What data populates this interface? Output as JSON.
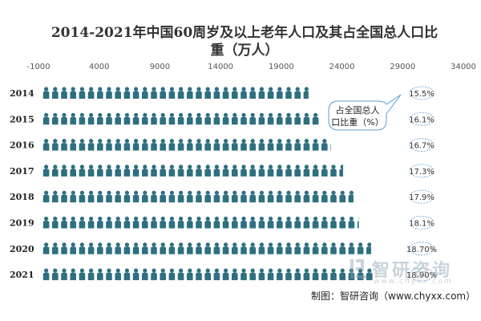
{
  "title": "2014-2021年中国60周岁及以上老年人口及其占全国总人口比重（万人）",
  "source_note": "制图：智研咨询（www.chyxx.com）",
  "watermark": {
    "brand": "智研咨询",
    "url": "www.chyxx.com"
  },
  "colors": {
    "pictogram": "#2e6f80",
    "bubble_border": "#5b9bd5",
    "axis_text": "#555555"
  },
  "chart_data": {
    "type": "bar",
    "style": "pictograph",
    "icon": "person-icon",
    "categories": [
      "2014",
      "2015",
      "2016",
      "2017",
      "2018",
      "2019",
      "2020",
      "2021"
    ],
    "series": [
      {
        "values": [
          21242,
          22200,
          23086,
          24090,
          24949,
          25388,
          26402,
          26736
        ]
      },
      {
        "values": [
          "15.5%",
          "16.1%",
          "16.7%",
          "17.3%",
          "17.9%",
          "18.1%",
          "18.70%",
          "18.90%"
        ]
      }
    ],
    "x_ticks": [
      "-1000",
      "4000",
      "9000",
      "14000",
      "19000",
      "24000",
      "29000",
      "34000"
    ],
    "xlim": [
      -1000,
      34000
    ],
    "x_axis_position": "top",
    "annotation": "占全国总人口比重（%）",
    "grid": false,
    "legend": "none"
  }
}
